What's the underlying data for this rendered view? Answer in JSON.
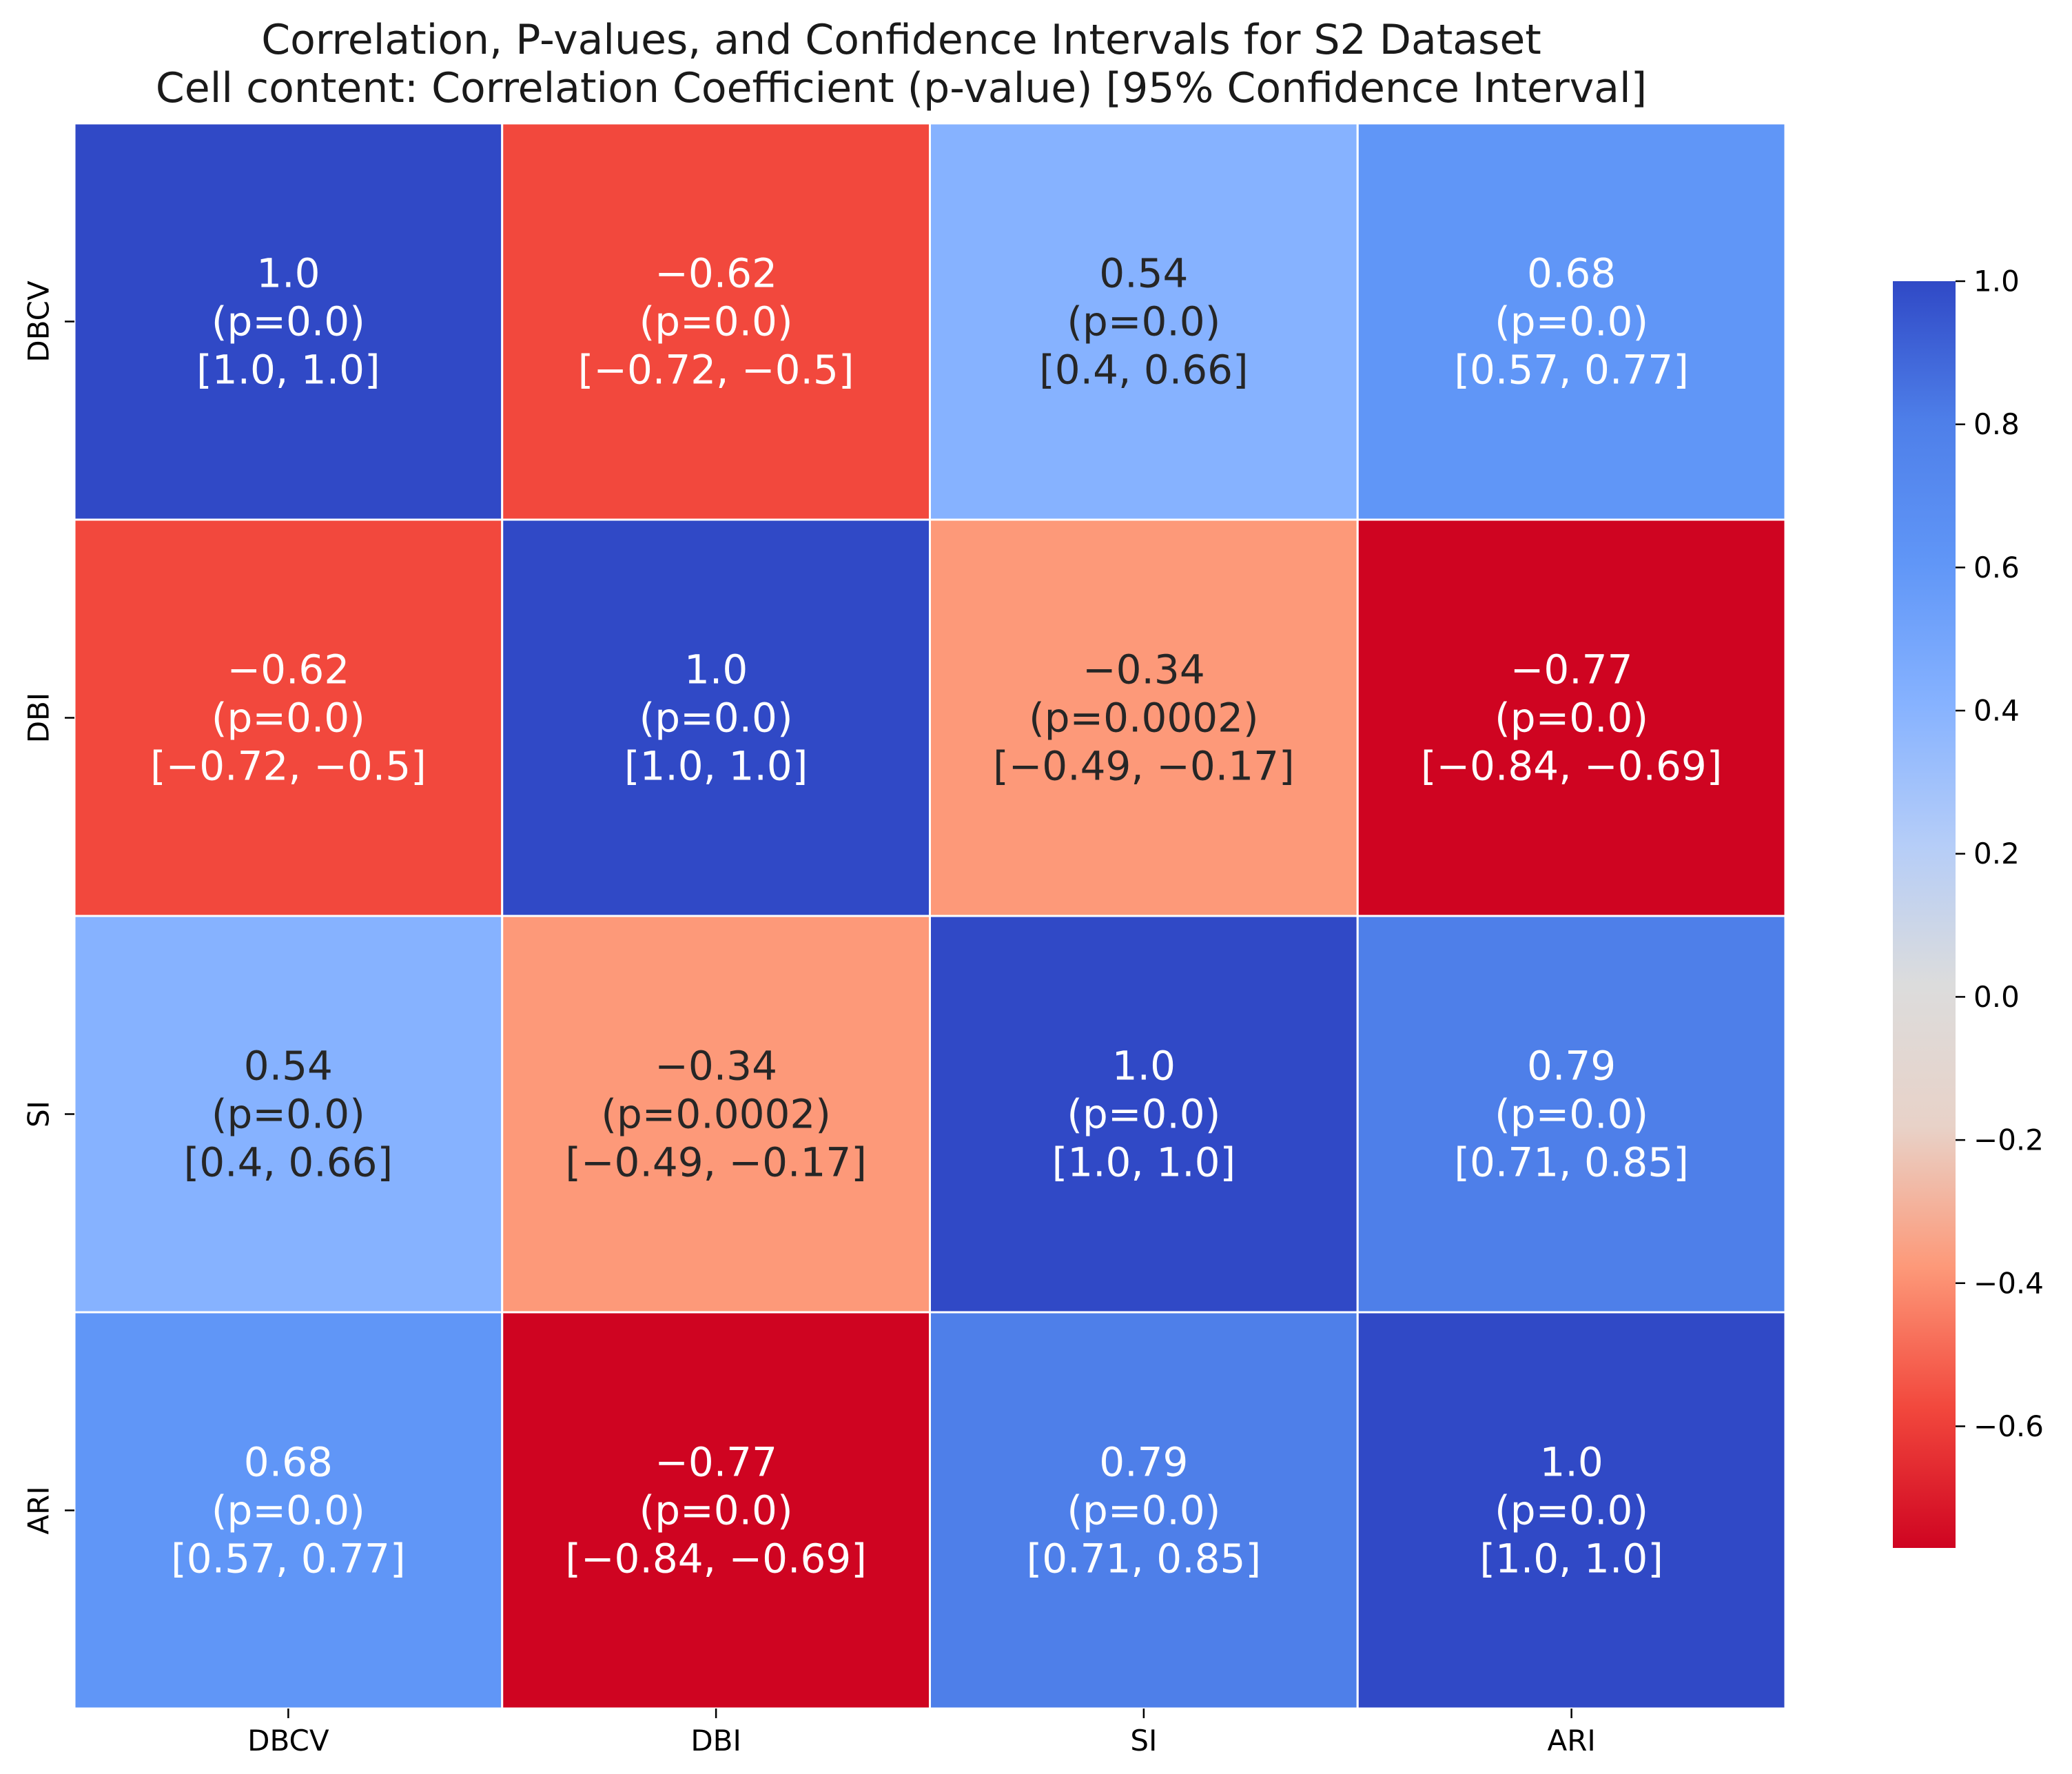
{
  "chart_data": {
    "type": "heatmap",
    "title": "Correlation, P-values, and Confidence Intervals for S2 Dataset",
    "subtitle": "Cell content: Correlation Coefficient (p-value) [95% Confidence Interval]",
    "x_labels": [
      "DBCV",
      "DBI",
      "SI",
      "ARI"
    ],
    "y_labels": [
      "DBCV",
      "DBI",
      "SI",
      "ARI"
    ],
    "colormap": "coolwarm",
    "vmin": -0.77,
    "vmax": 1.0,
    "cells": [
      [
        {
          "value": 1.0,
          "r_text": "1.0",
          "p_text": "(p=0.0)",
          "ci_text": "[1.0, 1.0]"
        },
        {
          "value": -0.62,
          "r_text": "−0.62",
          "p_text": "(p=0.0)",
          "ci_text": "[−0.72, −0.5]"
        },
        {
          "value": 0.54,
          "r_text": "0.54",
          "p_text": "(p=0.0)",
          "ci_text": "[0.4, 0.66]"
        },
        {
          "value": 0.68,
          "r_text": "0.68",
          "p_text": "(p=0.0)",
          "ci_text": "[0.57, 0.77]"
        }
      ],
      [
        {
          "value": -0.62,
          "r_text": "−0.62",
          "p_text": "(p=0.0)",
          "ci_text": "[−0.72, −0.5]"
        },
        {
          "value": 1.0,
          "r_text": "1.0",
          "p_text": "(p=0.0)",
          "ci_text": "[1.0, 1.0]"
        },
        {
          "value": -0.34,
          "r_text": "−0.34",
          "p_text": "(p=0.0002)",
          "ci_text": "[−0.49, −0.17]"
        },
        {
          "value": -0.77,
          "r_text": "−0.77",
          "p_text": "(p=0.0)",
          "ci_text": "[−0.84, −0.69]"
        }
      ],
      [
        {
          "value": 0.54,
          "r_text": "0.54",
          "p_text": "(p=0.0)",
          "ci_text": "[0.4, 0.66]"
        },
        {
          "value": -0.34,
          "r_text": "−0.34",
          "p_text": "(p=0.0002)",
          "ci_text": "[−0.49, −0.17]"
        },
        {
          "value": 1.0,
          "r_text": "1.0",
          "p_text": "(p=0.0)",
          "ci_text": "[1.0, 1.0]"
        },
        {
          "value": 0.79,
          "r_text": "0.79",
          "p_text": "(p=0.0)",
          "ci_text": "[0.71, 0.85]"
        }
      ],
      [
        {
          "value": 0.68,
          "r_text": "0.68",
          "p_text": "(p=0.0)",
          "ci_text": "[0.57, 0.77]"
        },
        {
          "value": -0.77,
          "r_text": "−0.77",
          "p_text": "(p=0.0)",
          "ci_text": "[−0.84, −0.69]"
        },
        {
          "value": 0.79,
          "r_text": "0.79",
          "p_text": "(p=0.0)",
          "ci_text": "[0.71, 0.85]"
        },
        {
          "value": 1.0,
          "r_text": "1.0",
          "p_text": "(p=0.0)",
          "ci_text": "[1.0, 1.0]"
        }
      ]
    ],
    "cell_colors": [
      [
        "#3049c6",
        "#f2483d",
        "#86b2ff",
        "#6096f7"
      ],
      [
        "#f2483d",
        "#3049c6",
        "#fd9979",
        "#cf0421"
      ],
      [
        "#86b2ff",
        "#fd9979",
        "#3049c6",
        "#4e7fe9"
      ],
      [
        "#6096f7",
        "#cf0421",
        "#4e7fe9",
        "#3049c6"
      ]
    ],
    "cell_text_colors": [
      [
        "#ffffff",
        "#ffffff",
        "#262626",
        "#ffffff"
      ],
      [
        "#ffffff",
        "#ffffff",
        "#262626",
        "#ffffff"
      ],
      [
        "#262626",
        "#262626",
        "#ffffff",
        "#ffffff"
      ],
      [
        "#ffffff",
        "#ffffff",
        "#ffffff",
        "#ffffff"
      ]
    ],
    "colorbar": {
      "ticks": [
        1.0,
        0.8,
        0.6,
        0.4,
        0.2,
        0.0,
        -0.2,
        -0.4,
        -0.6
      ],
      "tick_labels": [
        "1.0",
        "0.8",
        "0.6",
        "0.4",
        "0.2",
        "0.0",
        "−0.2",
        "−0.4",
        "−0.6"
      ],
      "range": [
        -0.77,
        1.0
      ],
      "colors": [
        "#cf0421",
        "#f2483d",
        "#fd9979",
        "#e8d2c8",
        "#dcdcdc",
        "#b5cdf8",
        "#86b2ff",
        "#6096f7",
        "#4e7fe9",
        "#3049c6"
      ]
    }
  }
}
